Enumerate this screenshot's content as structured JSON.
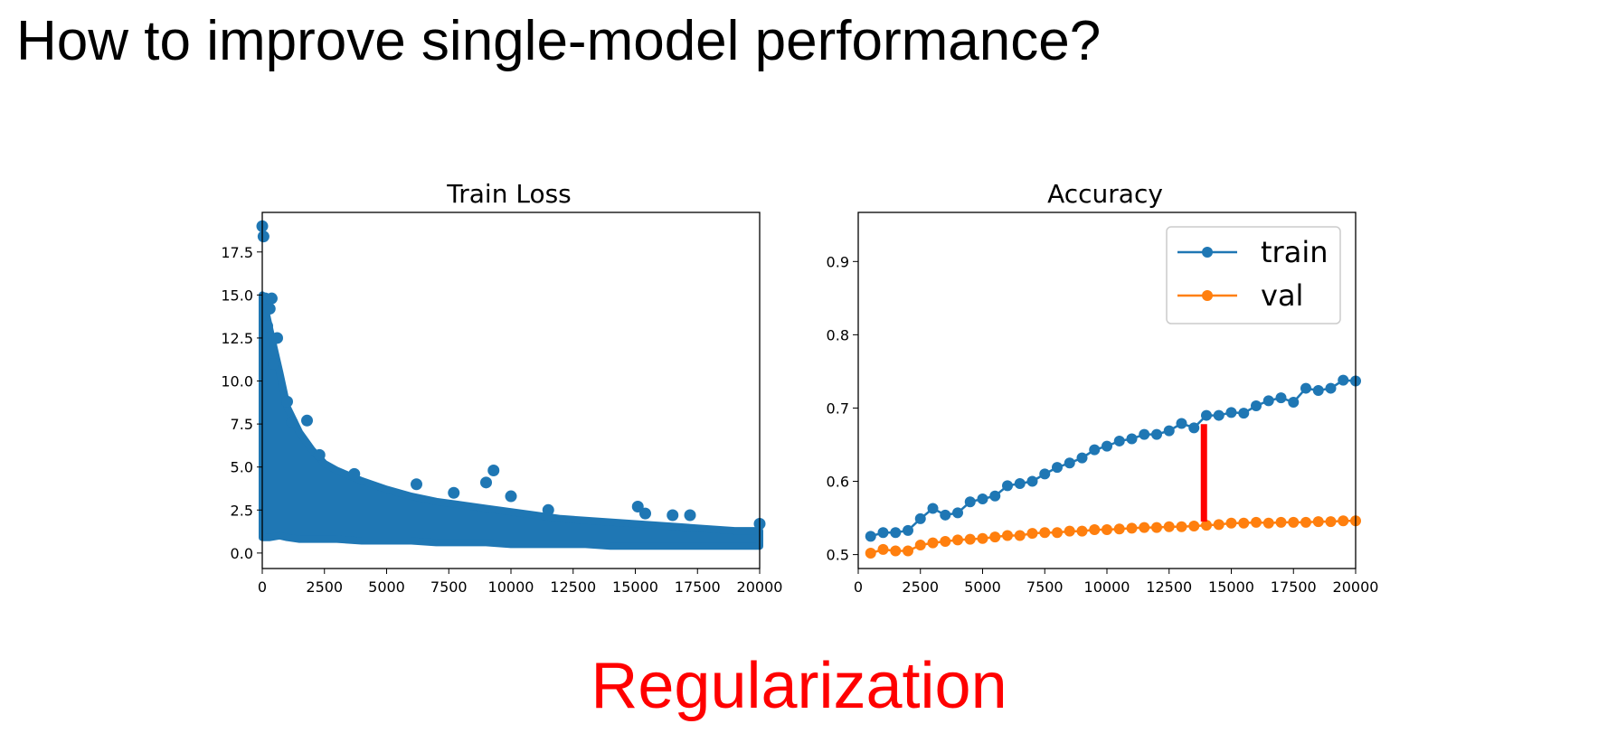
{
  "slide": {
    "title": "How to improve single-model performance?",
    "footer": "Regularization",
    "footer_color": "#ff0000"
  },
  "chart_data": [
    {
      "type": "scatter",
      "title": "Train Loss",
      "xlabel": "",
      "ylabel": "",
      "xlim": [
        0,
        20000
      ],
      "ylim": [
        -0.9,
        19.8
      ],
      "xticks": [
        0,
        2500,
        5000,
        7500,
        10000,
        12500,
        15000,
        17500,
        20000
      ],
      "xtick_labels": [
        "0",
        "2500",
        "5000",
        "7500",
        "10000",
        "12500",
        "15000",
        "17500",
        "20000"
      ],
      "yticks": [
        0.0,
        2.5,
        5.0,
        7.5,
        10.0,
        12.5,
        15.0,
        17.5
      ],
      "ytick_labels": [
        "0.0",
        "2.5",
        "5.0",
        "7.5",
        "10.0",
        "12.5",
        "15.0",
        "17.5"
      ],
      "color": "#1f77b4",
      "series": [
        {
          "x": [
            0,
            50,
            120,
            200,
            300,
            380,
            460,
            600,
            1000,
            1200,
            1800,
            2300,
            3700,
            6200,
            7700,
            9000,
            9300,
            10000,
            11500,
            15100,
            15400,
            16500,
            17200,
            20000
          ],
          "y": [
            19.0,
            18.4,
            14.8,
            13.2,
            14.2,
            14.8,
            11.0,
            12.5,
            8.8,
            7.6,
            7.7,
            5.7,
            4.6,
            4.0,
            3.5,
            4.1,
            4.8,
            3.3,
            2.5,
            2.7,
            2.3,
            2.2,
            2.2,
            1.7
          ]
        }
      ],
      "band": {
        "x": [
          0,
          300,
          700,
          1000,
          1500,
          2000,
          2500,
          3000,
          4000,
          5000,
          6000,
          7000,
          8000,
          9000,
          10000,
          11000,
          12000,
          13000,
          14000,
          15000,
          16000,
          17000,
          18000,
          19000,
          20000
        ],
        "upper": [
          15.0,
          13.0,
          10.5,
          8.5,
          7.0,
          6.0,
          5.2,
          4.8,
          4.2,
          3.7,
          3.3,
          3.0,
          2.8,
          2.6,
          2.4,
          2.2,
          2.0,
          1.9,
          1.8,
          1.7,
          1.6,
          1.5,
          1.4,
          1.3,
          1.3
        ],
        "lower": [
          0.9,
          0.9,
          1.0,
          0.9,
          0.8,
          0.8,
          0.8,
          0.8,
          0.7,
          0.7,
          0.7,
          0.6,
          0.6,
          0.6,
          0.5,
          0.5,
          0.5,
          0.5,
          0.4,
          0.4,
          0.4,
          0.4,
          0.4,
          0.4,
          0.4
        ]
      }
    },
    {
      "type": "line",
      "title": "Accuracy",
      "xlabel": "",
      "ylabel": "",
      "xlim": [
        0,
        20000
      ],
      "ylim": [
        0.481,
        0.967
      ],
      "xticks": [
        0,
        2500,
        5000,
        7500,
        10000,
        12500,
        15000,
        17500,
        20000
      ],
      "xtick_labels": [
        "0",
        "2500",
        "5000",
        "7500",
        "10000",
        "12500",
        "15000",
        "17500",
        "20000"
      ],
      "yticks": [
        0.5,
        0.6,
        0.7,
        0.8,
        0.9
      ],
      "ytick_labels": [
        "0.5",
        "0.6",
        "0.7",
        "0.8",
        "0.9"
      ],
      "legend_position": "top-right",
      "x": [
        500,
        1000,
        1500,
        2000,
        2500,
        3000,
        3500,
        4000,
        4500,
        5000,
        5500,
        6000,
        6500,
        7000,
        7500,
        8000,
        8500,
        9000,
        9500,
        10000,
        10500,
        11000,
        11500,
        12000,
        12500,
        13000,
        13500,
        14000,
        14500,
        15000,
        15500,
        16000,
        16500,
        17000,
        17500,
        18000,
        18500,
        19000,
        19500,
        20000
      ],
      "series": [
        {
          "name": "train",
          "color": "#1f77b4",
          "values": [
            0.525,
            0.53,
            0.53,
            0.533,
            0.549,
            0.563,
            0.554,
            0.557,
            0.572,
            0.576,
            0.58,
            0.594,
            0.597,
            0.6,
            0.61,
            0.619,
            0.625,
            0.632,
            0.643,
            0.648,
            0.655,
            0.658,
            0.664,
            0.664,
            0.669,
            0.679,
            0.673,
            0.69,
            0.69,
            0.694,
            0.693,
            0.703,
            0.71,
            0.714,
            0.708,
            0.727,
            0.724,
            0.727,
            0.738,
            0.737
          ]
        },
        {
          "name": "val",
          "color": "#ff7f0e",
          "values": [
            0.502,
            0.507,
            0.505,
            0.505,
            0.513,
            0.516,
            0.518,
            0.52,
            0.521,
            0.522,
            0.524,
            0.526,
            0.526,
            0.529,
            0.53,
            0.53,
            0.532,
            0.532,
            0.534,
            0.534,
            0.535,
            0.536,
            0.537,
            0.537,
            0.538,
            0.538,
            0.539,
            0.54,
            0.541,
            0.543,
            0.543,
            0.544,
            0.543,
            0.544,
            0.544,
            0.544,
            0.545,
            0.545,
            0.546,
            0.546
          ]
        }
      ],
      "annotation": {
        "type": "vertical-gap-bar",
        "x": 13900,
        "y_from": 0.545,
        "y_to": 0.678,
        "color": "#ff0000"
      }
    }
  ]
}
